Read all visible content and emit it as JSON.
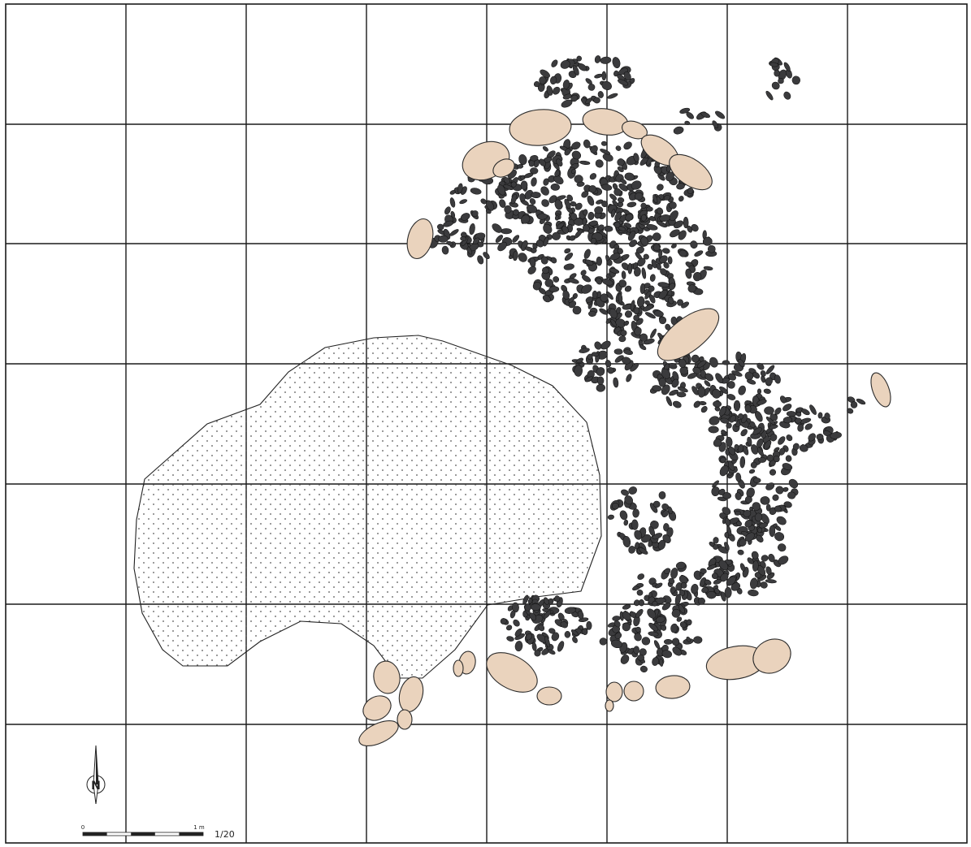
{
  "map": {
    "north_label": "N",
    "scale_zero": "0",
    "scale_one": "1 m",
    "scale_ratio": "1/20"
  },
  "colors": {
    "background": "#ffffff",
    "grid": "#1a1a1a",
    "slab_fill": "#ead3bd",
    "cobble_fill": "#3b3b3d",
    "stipple": "#555555"
  }
}
